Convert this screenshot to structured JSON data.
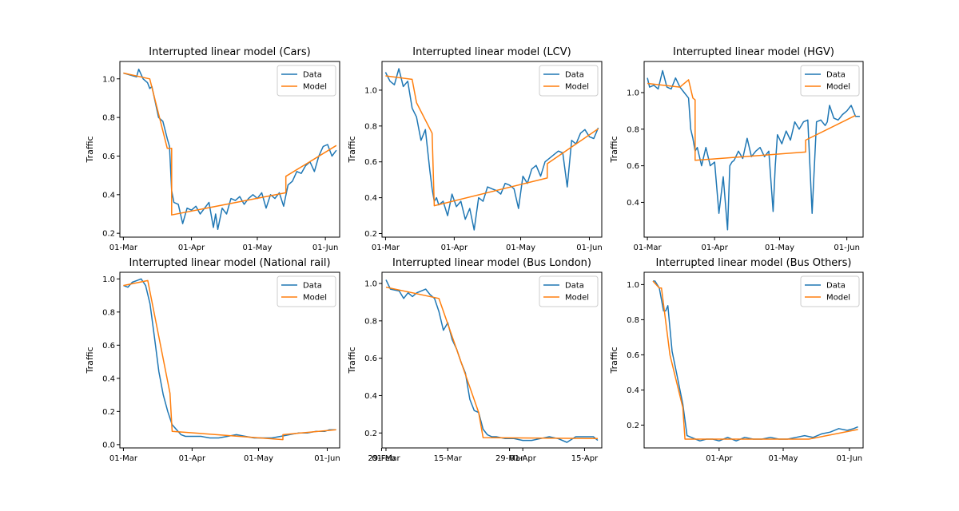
{
  "colors": {
    "data": "#1f77b4",
    "model": "#ff7f0e"
  },
  "chart_data": [
    {
      "type": "line",
      "title": "Interrupted linear model (Cars)",
      "xlabel": "",
      "ylabel": "Traffic",
      "x_ticks": [
        "01-Mar",
        "01-Apr",
        "01-May",
        "01-Jun"
      ],
      "y_ticks": [
        "0.2",
        "0.4",
        "0.6",
        "0.8",
        "1.0"
      ],
      "legend": {
        "position": "top-right",
        "entries": [
          "Data",
          "Model"
        ]
      },
      "series": [
        {
          "name": "Data",
          "x": [
            "01-Mar",
            "04-Mar",
            "07-Mar",
            "08-Mar",
            "10-Mar",
            "12-Mar",
            "13-Mar",
            "14-Mar",
            "17-Mar",
            "19-Mar",
            "21-Mar",
            "22-Mar",
            "23-Mar",
            "24-Mar",
            "26-Mar",
            "28-Mar",
            "30-Mar",
            "01-Apr",
            "03-Apr",
            "05-Apr",
            "07-Apr",
            "09-Apr",
            "11-Apr",
            "12-Apr",
            "13-Apr",
            "15-Apr",
            "17-Apr",
            "19-Apr",
            "21-Apr",
            "23-Apr",
            "25-Apr",
            "27-Apr",
            "29-Apr",
            "01-May",
            "03-May",
            "05-May",
            "07-May",
            "09-May",
            "11-May",
            "13-May",
            "15-May",
            "17-May",
            "19-May",
            "21-May",
            "23-May",
            "25-May",
            "27-May",
            "29-May",
            "31-May",
            "02-Jun",
            "04-Jun",
            "06-Jun"
          ],
          "values": [
            1.03,
            1.02,
            1.01,
            1.05,
            1.0,
            0.98,
            0.95,
            0.96,
            0.8,
            0.78,
            0.69,
            0.65,
            0.42,
            0.36,
            0.35,
            0.25,
            0.33,
            0.32,
            0.34,
            0.3,
            0.33,
            0.36,
            0.23,
            0.3,
            0.22,
            0.33,
            0.3,
            0.38,
            0.37,
            0.39,
            0.35,
            0.38,
            0.4,
            0.38,
            0.41,
            0.33,
            0.4,
            0.38,
            0.41,
            0.34,
            0.45,
            0.47,
            0.52,
            0.51,
            0.55,
            0.57,
            0.52,
            0.6,
            0.65,
            0.66,
            0.6,
            0.63
          ]
        },
        {
          "name": "Model",
          "x": [
            "01-Mar",
            "13-Mar",
            "21-Mar",
            "23-Mar",
            "23-Mar",
            "14-May",
            "14-May",
            "06-Jun"
          ],
          "values": [
            1.03,
            1.0,
            0.64,
            0.64,
            0.295,
            0.41,
            0.495,
            0.655
          ]
        }
      ]
    },
    {
      "type": "line",
      "title": "Interrupted linear model (LCV)",
      "xlabel": "",
      "ylabel": "Traffic",
      "x_ticks": [
        "01-Mar",
        "01-Apr",
        "01-May",
        "01-Jun"
      ],
      "y_ticks": [
        "0.2",
        "0.4",
        "0.6",
        "0.8",
        "1.0"
      ],
      "legend": {
        "position": "top-right",
        "entries": [
          "Data",
          "Model"
        ]
      },
      "series": [
        {
          "name": "Data",
          "x": [
            "01-Mar",
            "03-Mar",
            "05-Mar",
            "07-Mar",
            "09-Mar",
            "11-Mar",
            "13-Mar",
            "15-Mar",
            "17-Mar",
            "19-Mar",
            "21-Mar",
            "22-Mar",
            "23-Mar",
            "24-Mar",
            "25-Mar",
            "27-Mar",
            "29-Mar",
            "31-Mar",
            "02-Apr",
            "04-Apr",
            "06-Apr",
            "08-Apr",
            "10-Apr",
            "12-Apr",
            "14-Apr",
            "16-Apr",
            "18-Apr",
            "20-Apr",
            "22-Apr",
            "24-Apr",
            "26-Apr",
            "28-Apr",
            "30-Apr",
            "02-May",
            "04-May",
            "06-May",
            "08-May",
            "10-May",
            "12-May",
            "14-May",
            "16-May",
            "18-May",
            "20-May",
            "22-May",
            "24-May",
            "26-May",
            "28-May",
            "30-May",
            "01-Jun",
            "03-Jun",
            "05-Jun"
          ],
          "values": [
            1.1,
            1.05,
            1.03,
            1.12,
            1.02,
            1.05,
            0.9,
            0.85,
            0.72,
            0.78,
            0.55,
            0.45,
            0.38,
            0.4,
            0.36,
            0.38,
            0.3,
            0.42,
            0.35,
            0.38,
            0.28,
            0.34,
            0.22,
            0.4,
            0.38,
            0.46,
            0.45,
            0.44,
            0.42,
            0.48,
            0.47,
            0.45,
            0.34,
            0.52,
            0.48,
            0.56,
            0.58,
            0.52,
            0.6,
            0.62,
            0.64,
            0.66,
            0.65,
            0.46,
            0.72,
            0.7,
            0.76,
            0.78,
            0.74,
            0.73,
            0.79
          ]
        },
        {
          "name": "Model",
          "x": [
            "01-Mar",
            "13-Mar",
            "15-Mar",
            "22-Mar",
            "23-Mar",
            "13-May",
            "13-May",
            "05-Jun"
          ],
          "values": [
            1.08,
            1.06,
            0.93,
            0.76,
            0.355,
            0.51,
            0.59,
            0.785
          ]
        }
      ]
    },
    {
      "type": "line",
      "title": "Interrupted linear model (HGV)",
      "xlabel": "",
      "ylabel": "Traffic",
      "x_ticks": [
        "01-Mar",
        "01-Apr",
        "01-May",
        "01-Jun"
      ],
      "y_ticks": [
        "0.4",
        "0.6",
        "0.8",
        "1.0"
      ],
      "legend": {
        "position": "top-right",
        "entries": [
          "Data",
          "Model"
        ]
      },
      "series": [
        {
          "name": "Data",
          "x": [
            "01-Mar",
            "02-Mar",
            "04-Mar",
            "06-Mar",
            "08-Mar",
            "10-Mar",
            "12-Mar",
            "14-Mar",
            "16-Mar",
            "18-Mar",
            "20-Mar",
            "21-Mar",
            "22-Mar",
            "23-Mar",
            "24-Mar",
            "26-Mar",
            "28-Mar",
            "30-Mar",
            "01-Apr",
            "03-Apr",
            "05-Apr",
            "07-Apr",
            "08-Apr",
            "09-Apr",
            "10-Apr",
            "12-Apr",
            "13-Apr",
            "14-Apr",
            "16-Apr",
            "18-Apr",
            "20-Apr",
            "22-Apr",
            "24-Apr",
            "26-Apr",
            "28-Apr",
            "29-Apr",
            "30-Apr",
            "02-May",
            "04-May",
            "06-May",
            "08-May",
            "10-May",
            "11-May",
            "12-May",
            "14-May",
            "16-May",
            "18-May",
            "20-May",
            "22-May",
            "23-May",
            "24-May",
            "26-May",
            "28-May",
            "30-May",
            "01-Jun",
            "03-Jun",
            "05-Jun",
            "07-Jun"
          ],
          "values": [
            1.08,
            1.03,
            1.04,
            1.02,
            1.12,
            1.03,
            1.02,
            1.08,
            1.03,
            1.0,
            0.97,
            0.8,
            0.75,
            0.68,
            0.7,
            0.6,
            0.7,
            0.6,
            0.62,
            0.34,
            0.54,
            0.25,
            0.6,
            0.62,
            0.63,
            0.68,
            0.66,
            0.64,
            0.75,
            0.65,
            0.68,
            0.7,
            0.65,
            0.68,
            0.35,
            0.6,
            0.77,
            0.72,
            0.79,
            0.74,
            0.84,
            0.8,
            0.82,
            0.84,
            0.85,
            0.34,
            0.84,
            0.85,
            0.82,
            0.84,
            0.93,
            0.86,
            0.85,
            0.88,
            0.9,
            0.93,
            0.87,
            0.87
          ]
        },
        {
          "name": "Model",
          "x": [
            "01-Mar",
            "16-Mar",
            "20-Mar",
            "22-Mar",
            "23-Mar",
            "23-Mar",
            "13-May",
            "13-May",
            "05-Jun"
          ],
          "values": [
            1.05,
            1.03,
            1.07,
            0.97,
            0.96,
            0.63,
            0.675,
            0.74,
            0.875
          ]
        }
      ]
    },
    {
      "type": "line",
      "title": "Interrupted linear model (National rail)",
      "xlabel": "",
      "ylabel": "Traffic",
      "x_ticks": [
        "01-Mar",
        "01-Apr",
        "01-May",
        "01-Jun"
      ],
      "y_ticks": [
        "0.0",
        "0.2",
        "0.4",
        "0.6",
        "0.8",
        "1.0"
      ],
      "legend": {
        "position": "top-right",
        "entries": [
          "Data",
          "Model"
        ]
      },
      "series": [
        {
          "name": "Data",
          "x": [
            "01-Mar",
            "03-Mar",
            "05-Mar",
            "07-Mar",
            "09-Mar",
            "11-Mar",
            "13-Mar",
            "15-Mar",
            "17-Mar",
            "19-Mar",
            "21-Mar",
            "23-Mar",
            "25-Mar",
            "27-Mar",
            "29-Mar",
            "01-Apr",
            "05-Apr",
            "09-Apr",
            "13-Apr",
            "17-Apr",
            "21-Apr",
            "25-Apr",
            "29-Apr",
            "03-May",
            "07-May",
            "11-May",
            "15-May",
            "19-May",
            "23-May",
            "27-May",
            "31-May",
            "02-Jun",
            "05-Jun"
          ],
          "values": [
            0.96,
            0.95,
            0.98,
            0.99,
            1.0,
            0.96,
            0.85,
            0.65,
            0.44,
            0.3,
            0.2,
            0.12,
            0.09,
            0.06,
            0.05,
            0.05,
            0.05,
            0.04,
            0.04,
            0.05,
            0.06,
            0.05,
            0.04,
            0.04,
            0.04,
            0.05,
            0.06,
            0.07,
            0.07,
            0.08,
            0.08,
            0.09,
            0.09
          ]
        },
        {
          "name": "Model",
          "x": [
            "01-Mar",
            "12-Mar",
            "22-Mar",
            "23-Mar",
            "12-May",
            "12-May",
            "05-Jun"
          ],
          "values": [
            0.96,
            0.99,
            0.31,
            0.08,
            0.03,
            0.06,
            0.09
          ]
        }
      ]
    },
    {
      "type": "line",
      "title": "Interrupted linear model (Bus London)",
      "xlabel": "",
      "ylabel": "Traffic",
      "x_ticks": [
        "01-Mar",
        "15-Mar",
        "29-Mar",
        "15-Apr"
      ],
      "x_tick_overlays": [
        "29-Feb",
        "01-Apr"
      ],
      "y_ticks": [
        "0.2",
        "0.4",
        "0.6",
        "0.8",
        "1.0"
      ],
      "legend": {
        "position": "top-right",
        "entries": [
          "Data",
          "Model"
        ]
      },
      "series": [
        {
          "name": "Data",
          "x": [
            "01-Mar",
            "02-Mar",
            "04-Mar",
            "05-Mar",
            "06-Mar",
            "07-Mar",
            "08-Mar",
            "09-Mar",
            "10-Mar",
            "11-Mar",
            "12-Mar",
            "13-Mar",
            "14-Mar",
            "15-Mar",
            "16-Mar",
            "17-Mar",
            "18-Mar",
            "19-Mar",
            "20-Mar",
            "21-Mar",
            "22-Mar",
            "23-Mar",
            "24-Mar",
            "25-Mar",
            "26-Mar",
            "28-Mar",
            "30-Mar",
            "01-Apr",
            "03-Apr",
            "05-Apr",
            "07-Apr",
            "09-Apr",
            "11-Apr",
            "13-Apr",
            "15-Apr",
            "17-Apr",
            "18-Apr"
          ],
          "values": [
            1.02,
            0.97,
            0.96,
            0.92,
            0.95,
            0.93,
            0.95,
            0.96,
            0.97,
            0.94,
            0.92,
            0.85,
            0.75,
            0.79,
            0.7,
            0.65,
            0.58,
            0.52,
            0.38,
            0.32,
            0.31,
            0.22,
            0.19,
            0.18,
            0.18,
            0.17,
            0.17,
            0.16,
            0.16,
            0.17,
            0.18,
            0.17,
            0.15,
            0.18,
            0.18,
            0.18,
            0.16
          ]
        },
        {
          "name": "Model",
          "x": [
            "01-Mar",
            "13-Mar",
            "22-Mar",
            "23-Mar",
            "18-Apr"
          ],
          "values": [
            0.98,
            0.92,
            0.31,
            0.175,
            0.17
          ]
        }
      ]
    },
    {
      "type": "line",
      "title": "Interrupted linear model (Bus Others)",
      "xlabel": "",
      "ylabel": "Traffic",
      "x_ticks": [
        "01-Apr",
        "01-May",
        "01-Jun"
      ],
      "y_ticks": [
        "0.2",
        "0.4",
        "0.6",
        "0.8",
        "1.0"
      ],
      "legend": {
        "position": "top-right",
        "entries": [
          "Data",
          "Model"
        ]
      },
      "series": [
        {
          "name": "Data",
          "x": [
            "01-Mar",
            "02-Mar",
            "04-Mar",
            "06-Mar",
            "07-Mar",
            "08-Mar",
            "10-Mar",
            "12-Mar",
            "14-Mar",
            "15-Mar",
            "17-Mar",
            "19-Mar",
            "21-Mar",
            "23-Mar",
            "26-Mar",
            "29-Mar",
            "01-Apr",
            "05-Apr",
            "09-Apr",
            "13-Apr",
            "17-Apr",
            "21-Apr",
            "25-Apr",
            "29-Apr",
            "03-May",
            "07-May",
            "11-May",
            "15-May",
            "19-May",
            "23-May",
            "27-May",
            "31-May",
            "03-Jun",
            "05-Jun"
          ],
          "values": [
            1.02,
            1.02,
            0.98,
            0.85,
            0.85,
            0.88,
            0.62,
            0.5,
            0.38,
            0.32,
            0.14,
            0.13,
            0.12,
            0.11,
            0.12,
            0.12,
            0.11,
            0.13,
            0.11,
            0.13,
            0.12,
            0.12,
            0.13,
            0.12,
            0.12,
            0.13,
            0.14,
            0.13,
            0.15,
            0.16,
            0.18,
            0.17,
            0.18,
            0.19
          ]
        },
        {
          "name": "Model",
          "x": [
            "01-Mar",
            "04-Mar",
            "05-Mar",
            "09-Mar",
            "15-Mar",
            "16-Mar",
            "13-May",
            "05-Jun"
          ],
          "values": [
            1.02,
            0.98,
            0.98,
            0.6,
            0.3,
            0.12,
            0.12,
            0.175
          ]
        }
      ]
    }
  ]
}
